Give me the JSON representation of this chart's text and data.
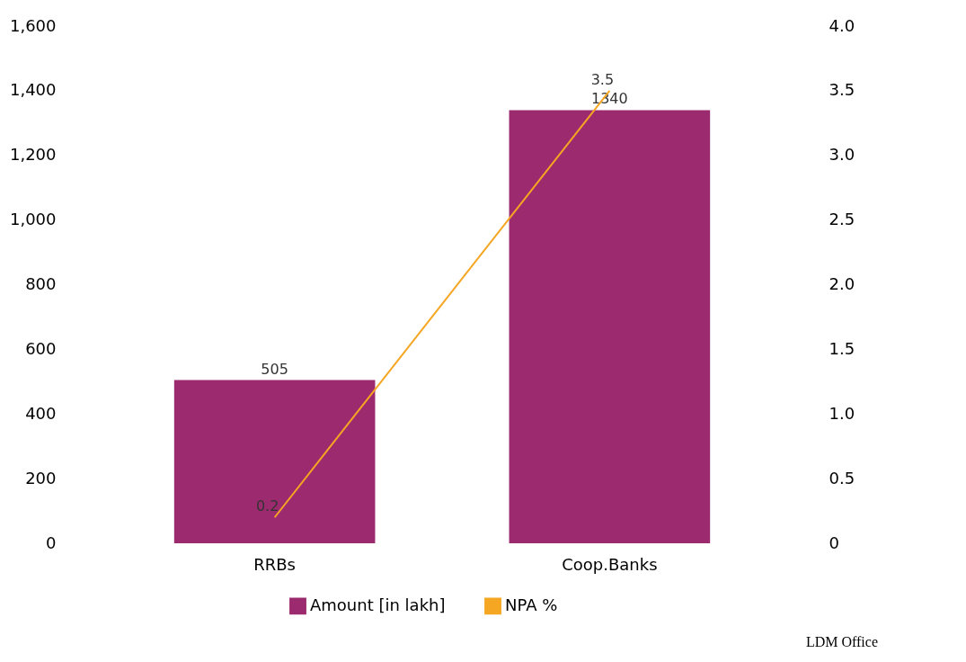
{
  "chart_data": {
    "type": "bar",
    "categories": [
      "RRBs",
      "Coop.Banks"
    ],
    "series": [
      {
        "name": "Amount [in lakh]",
        "color": "#9c2a6e",
        "values": [
          505,
          1340
        ]
      },
      {
        "name": "NPA %",
        "type": "line",
        "color": "#f5a623",
        "values": [
          0.2,
          3.5
        ],
        "axis": "y2"
      }
    ],
    "ylim": [
      0,
      1600
    ],
    "yticks": [
      0,
      200,
      400,
      600,
      800,
      {
        "value": 1000,
        "label": "1,000"
      },
      {
        "value": 1200,
        "label": "1,200"
      },
      {
        "value": 1400,
        "label": "1,400"
      },
      {
        "value": 1600,
        "label": "1,600"
      }
    ],
    "y2lim": [
      0,
      4
    ],
    "y2ticks": [
      0,
      0.5,
      {
        "value": 1,
        "label": "1.0"
      },
      1.5,
      {
        "value": 2,
        "label": "2.0"
      },
      2.5,
      {
        "value": 3,
        "label": "3.0"
      },
      3.5,
      {
        "value": 4,
        "label": "4.0"
      }
    ],
    "data_labels": true,
    "grid": false,
    "legend": "bottom",
    "annotations": [
      "LDM Office"
    ]
  }
}
